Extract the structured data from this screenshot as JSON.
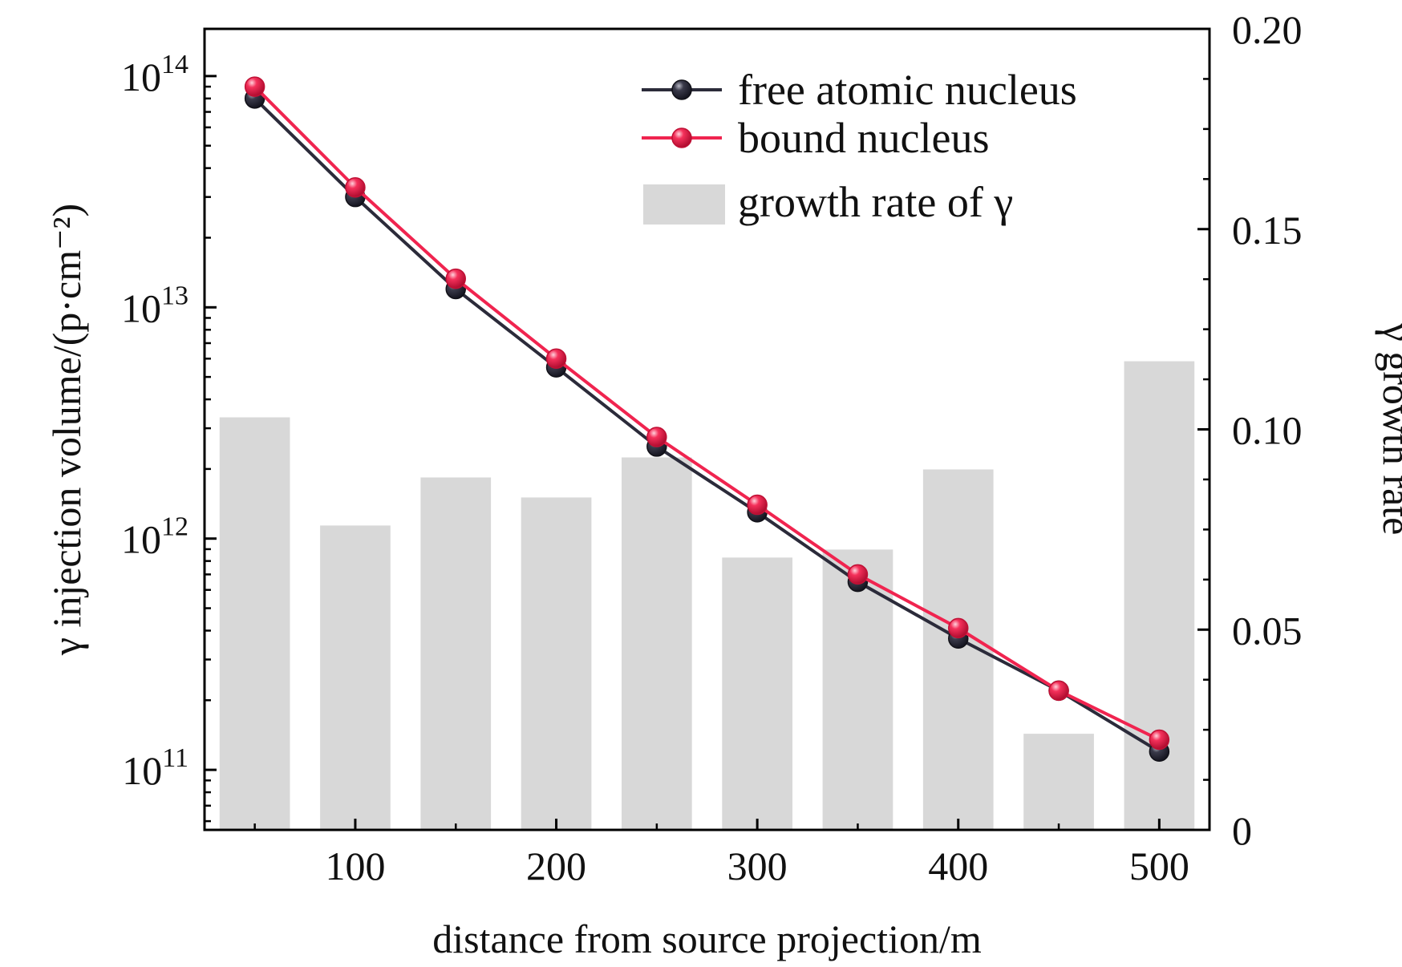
{
  "chart_data": {
    "type": "bar+line",
    "x": [
      50,
      100,
      150,
      200,
      250,
      300,
      350,
      400,
      450,
      500
    ],
    "xlabel": "distance from source projection/m",
    "xticks": [
      "100",
      "200",
      "300",
      "400",
      "500"
    ],
    "xtick_values": [
      100,
      200,
      300,
      400,
      500
    ],
    "xlim": [
      25,
      525
    ],
    "y_left": {
      "label": "γ injection volume/(p·cm⁻²)",
      "scale": "log",
      "lim": [
        55000000000.0,
        160000000000000.0
      ],
      "ticks": [
        {
          "base": "10",
          "exp": "11",
          "value": 100000000000.0
        },
        {
          "base": "10",
          "exp": "12",
          "value": 1000000000000.0
        },
        {
          "base": "10",
          "exp": "13",
          "value": 10000000000000.0
        },
        {
          "base": "10",
          "exp": "14",
          "value": 100000000000000.0
        }
      ]
    },
    "y_right": {
      "label": "γ growth rate",
      "scale": "linear",
      "lim": [
        0,
        0.2
      ],
      "ticks": [
        "0",
        "0.05",
        "0.10",
        "0.15",
        "0.20"
      ],
      "tick_values": [
        0,
        0.05,
        0.1,
        0.15,
        0.2
      ]
    },
    "series": [
      {
        "name": "free atomic nucleus",
        "axis": "left",
        "kind": "line",
        "color": "#2b2b3a",
        "values": [
          80000000000000.0,
          30000000000000.0,
          12000000000000.0,
          5500000000000.0,
          2500000000000.0,
          1300000000000.0,
          650000000000.0,
          370000000000.0,
          220000000000.0,
          120000000000.0
        ]
      },
      {
        "name": "bound nucleus",
        "axis": "left",
        "kind": "line",
        "color": "#f0244f",
        "values": [
          90000000000000.0,
          33000000000000.0,
          13300000000000.0,
          6000000000000.0,
          2750000000000.0,
          1400000000000.0,
          700000000000.0,
          410000000000.0,
          220000000000.0,
          135000000000.0
        ]
      },
      {
        "name": "growth rate of γ",
        "axis": "right",
        "kind": "bar",
        "color": "#d8d8d8",
        "values": [
          0.103,
          0.076,
          0.088,
          0.083,
          0.093,
          0.068,
          0.07,
          0.09,
          0.024,
          0.117
        ]
      }
    ],
    "legend": {
      "position": "top-right",
      "entries": [
        "free atomic nucleus",
        "bound nucleus",
        "growth rate of γ"
      ]
    },
    "grid": false
  }
}
